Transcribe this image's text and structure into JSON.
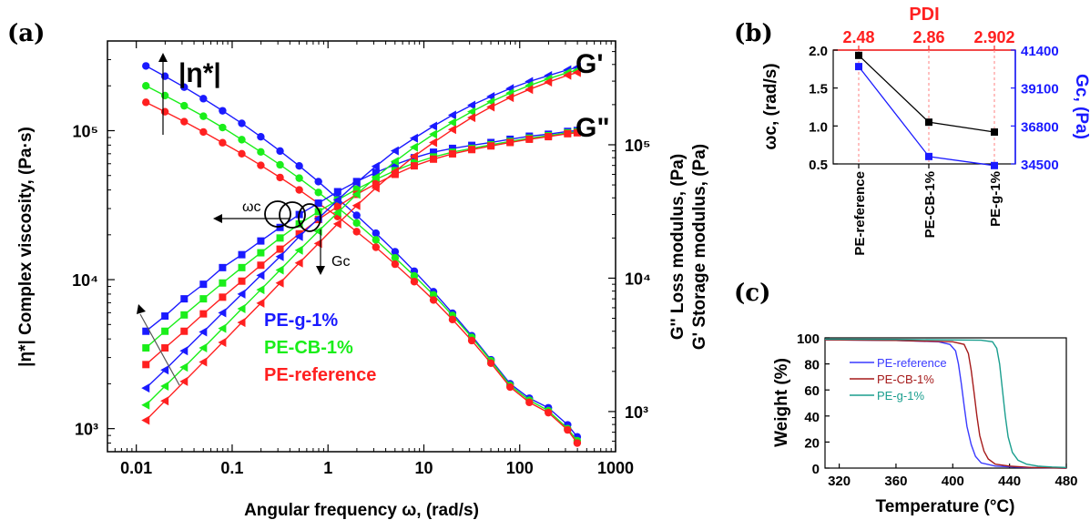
{
  "panel_labels": {
    "a": "(a)",
    "b": "(b)",
    "c": "(c)"
  },
  "chart_data": [
    {
      "id": "a",
      "type": "scatter",
      "xscale": "log",
      "xlabel": "Angular frequency ω, (rad/s)",
      "ylabel_left": "|η*| Complex viscosity, (Pa·s)",
      "ylabel_right_1": "G''  Loss modulus, (Pa)",
      "ylabel_right_2": "G'  Storage modulus, (Pa)",
      "xlim": [
        0.005,
        1000
      ],
      "ylim_left": [
        700,
        400000
      ],
      "ylim_right": [
        500,
        600000
      ],
      "x_ticks": [
        "0.01",
        "0.1",
        "1",
        "10",
        "100",
        "1000"
      ],
      "yleft_ticks": [
        "10³",
        "10⁴",
        "10⁵"
      ],
      "yright_ticks": [
        "10³",
        "10⁴",
        "10⁵"
      ],
      "annotations": {
        "eta": "|η*|",
        "Gp": "G'",
        "Gpp": "G\"",
        "wc": "ωc",
        "Gc": "Gc"
      },
      "legend": [
        "PE-g-1%",
        "PE-CB-1%",
        "PE-reference"
      ],
      "colors": {
        "PE-g-1%": "#1a1aff",
        "PE-CB-1%": "#1aee1a",
        "PE-reference": "#ff2020"
      },
      "x": [
        0.0126,
        0.0199,
        0.0316,
        0.0501,
        0.0794,
        0.126,
        0.199,
        0.316,
        0.501,
        0.794,
        1.26,
        1.99,
        3.16,
        5.01,
        7.94,
        12.6,
        19.9,
        31.6,
        50.1,
        79.4,
        126,
        199,
        316,
        398
      ],
      "series": [
        {
          "name": "PE-g-1%",
          "quantity": "eta",
          "marker": "circle",
          "values": [
            272000,
            232000,
            196000,
            164000,
            136000,
            112000,
            91000,
            73000,
            58000,
            45500,
            35000,
            27000,
            20500,
            15400,
            11400,
            8300,
            5950,
            4200,
            2900,
            2000,
            1600,
            1380,
            1060,
            880
          ]
        },
        {
          "name": "PE-CB-1%",
          "quantity": "eta",
          "marker": "circle",
          "values": [
            200000,
            172000,
            147000,
            125000,
            105000,
            87000,
            72000,
            59000,
            48000,
            38500,
            30500,
            24000,
            18500,
            14000,
            10600,
            7900,
            5750,
            4100,
            2850,
            1950,
            1550,
            1320,
            1000,
            830
          ]
        },
        {
          "name": "PE-reference",
          "quantity": "eta",
          "marker": "circle",
          "values": [
            155000,
            134000,
            115000,
            98000,
            83000,
            70000,
            58500,
            48500,
            40000,
            32500,
            26500,
            21000,
            16500,
            12700,
            9700,
            7300,
            5400,
            3900,
            2750,
            1900,
            1500,
            1280,
            980,
            800
          ]
        },
        {
          "name": "PE-g-1%",
          "quantity": "G''",
          "marker": "square",
          "values": [
            4000,
            5200,
            7000,
            9000,
            12000,
            15000,
            19000,
            24000,
            30000,
            36500,
            44500,
            53000,
            62000,
            71000,
            80000,
            88000,
            94000,
            99000,
            104000,
            110000,
            116000,
            120000,
            126000,
            128000
          ]
        },
        {
          "name": "PE-CB-1%",
          "quantity": "G''",
          "marker": "square",
          "values": [
            3000,
            4000,
            5300,
            7000,
            9200,
            12000,
            15500,
            20000,
            25500,
            31500,
            38500,
            46500,
            55000,
            64000,
            73000,
            81000,
            88000,
            94000,
            100000,
            106000,
            112000,
            117000,
            123000,
            125000
          ]
        },
        {
          "name": "PE-reference",
          "quantity": "G''",
          "marker": "square",
          "values": [
            2250,
            3000,
            4000,
            5400,
            7200,
            9500,
            12500,
            16500,
            21500,
            27500,
            34500,
            42500,
            51000,
            60000,
            69500,
            78000,
            85500,
            92000,
            98000,
            104000,
            110000,
            115000,
            121000,
            123000
          ]
        },
        {
          "name": "PE-g-1%",
          "quantity": "G'",
          "marker": "triangle-left",
          "values": [
            1500,
            2050,
            2850,
            3950,
            5500,
            7600,
            10500,
            14500,
            20500,
            28000,
            38500,
            52000,
            69000,
            90000,
            112000,
            138000,
            167000,
            198000,
            230000,
            264000,
            298000,
            330000,
            365000,
            380000
          ]
        },
        {
          "name": "PE-CB-1%",
          "quantity": "G'",
          "marker": "triangle-left",
          "values": [
            1120,
            1550,
            2150,
            3000,
            4200,
            5900,
            8200,
            11500,
            16200,
            22500,
            31000,
            42500,
            57000,
            75000,
            96000,
            120000,
            147000,
            177000,
            210000,
            244000,
            278000,
            312000,
            348000,
            362000
          ]
        },
        {
          "name": "PE-reference",
          "quantity": "G'",
          "marker": "triangle-left",
          "values": [
            860,
            1200,
            1680,
            2350,
            3300,
            4650,
            6500,
            9200,
            13000,
            18200,
            25500,
            35000,
            47500,
            63000,
            82000,
            104000,
            130000,
            160000,
            192000,
            226000,
            260000,
            295000,
            332000,
            348000
          ]
        }
      ]
    },
    {
      "id": "b",
      "type": "line",
      "categories": [
        "PE-reference",
        "PE-CB-1%",
        "PE-g-1%"
      ],
      "top_title": "PDI",
      "top_ticks": [
        "2.48",
        "2.86",
        "2.902"
      ],
      "ylabel_left": "ωc, (rad/s)",
      "ylabel_right": "Gc, (Pa)",
      "ylim_left": [
        0.5,
        2.0
      ],
      "yleft_ticks": [
        "0.5",
        "1.0",
        "1.5",
        "2.0"
      ],
      "ylim_right": [
        34500,
        41400
      ],
      "yright_ticks": [
        "34500",
        "36800",
        "39100",
        "41400"
      ],
      "series": [
        {
          "name": "ωc",
          "axis": "left",
          "color": "#000000",
          "values": [
            1.93,
            1.05,
            0.92
          ]
        },
        {
          "name": "Gc",
          "axis": "right",
          "color": "#1a1aff",
          "values": [
            40400,
            34950,
            34400
          ]
        }
      ]
    },
    {
      "id": "c",
      "type": "line",
      "xlabel": "Temperature (°C)",
      "ylabel": "Weight (%)",
      "xlim": [
        310,
        480
      ],
      "ylim": [
        0,
        100
      ],
      "x_ticks": [
        "320",
        "360",
        "400",
        "440",
        "480"
      ],
      "y_ticks": [
        "0",
        "20",
        "40",
        "60",
        "80",
        "100"
      ],
      "legend": [
        "PE-reference",
        "PE-CB-1%",
        "PE-g-1%"
      ],
      "series": [
        {
          "name": "PE-reference",
          "color": "#3a3aff",
          "x": [
            310,
            360,
            390,
            398,
            402,
            404,
            406,
            408,
            410,
            413,
            416,
            420,
            430,
            450,
            480
          ],
          "y": [
            98.5,
            98,
            97,
            95,
            90,
            80,
            65,
            48,
            32,
            18,
            9,
            4,
            1.5,
            0.5,
            0
          ]
        },
        {
          "name": "PE-CB-1%",
          "color": "#a51a1a",
          "x": [
            310,
            360,
            400,
            408,
            411,
            413,
            415,
            417,
            419,
            422,
            425,
            430,
            440,
            455,
            480
          ],
          "y": [
            98.5,
            98,
            97,
            95,
            88,
            75,
            58,
            40,
            25,
            13,
            7,
            3,
            1.5,
            0.5,
            0
          ]
        },
        {
          "name": "PE-g-1%",
          "color": "#1a9e8e",
          "x": [
            310,
            360,
            420,
            428,
            431,
            433,
            435,
            437,
            439,
            442,
            446,
            452,
            460,
            470,
            480
          ],
          "y": [
            99,
            98.8,
            98.2,
            97,
            92,
            80,
            60,
            40,
            24,
            12,
            6,
            3,
            1.5,
            0.8,
            0.5
          ]
        }
      ]
    }
  ]
}
